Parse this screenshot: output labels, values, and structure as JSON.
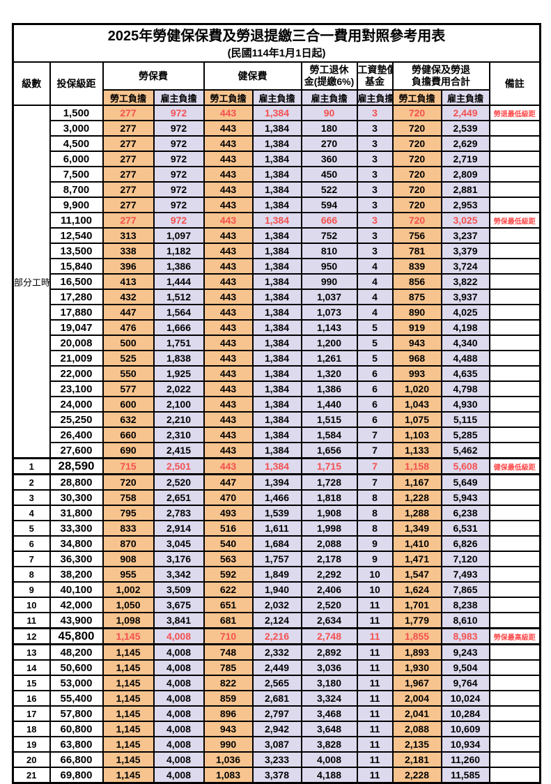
{
  "title": "2025年勞健保保費及勞退提繳三合一費用對照參考用表",
  "subtitle": "(民國114年1月1日起)",
  "colors": {
    "employee_share_bg": "#F7C48F",
    "employer_share_bg": "#DDDAEE",
    "highlight_value_red": "#F4504F",
    "remark_red": "#FF4B4B",
    "grid": "#000000"
  },
  "header": {
    "level": "級數",
    "bracket": "投保級距",
    "labor_ins": "勞保費",
    "health_ins": "健保費",
    "pension_line1": "勞工退休",
    "pension_line2": "金(提繳6%)",
    "wage_fund_line1": "工資墊償",
    "wage_fund_line2": "基金",
    "total_line1": "勞健保及勞退",
    "total_line2": "負擔費用合計",
    "remark": "備註",
    "employee_share": "勞工負擔",
    "employer_share": "雇主負擔"
  },
  "part_time": {
    "label": "部分工時",
    "row_count": 23
  },
  "rows": [
    {
      "level": "",
      "bracket": "1,500",
      "v": [
        "277",
        "972",
        "443",
        "1,384",
        "90",
        "3",
        "720",
        "2,449"
      ],
      "remark": "勞退最低級距",
      "hl": true,
      "big": false
    },
    {
      "level": "",
      "bracket": "3,000",
      "v": [
        "277",
        "972",
        "443",
        "1,384",
        "180",
        "3",
        "720",
        "2,539"
      ],
      "remark": "",
      "hl": false,
      "big": false
    },
    {
      "level": "",
      "bracket": "4,500",
      "v": [
        "277",
        "972",
        "443",
        "1,384",
        "270",
        "3",
        "720",
        "2,629"
      ],
      "remark": "",
      "hl": false,
      "big": false
    },
    {
      "level": "",
      "bracket": "6,000",
      "v": [
        "277",
        "972",
        "443",
        "1,384",
        "360",
        "3",
        "720",
        "2,719"
      ],
      "remark": "",
      "hl": false,
      "big": false
    },
    {
      "level": "",
      "bracket": "7,500",
      "v": [
        "277",
        "972",
        "443",
        "1,384",
        "450",
        "3",
        "720",
        "2,809"
      ],
      "remark": "",
      "hl": false,
      "big": false
    },
    {
      "level": "",
      "bracket": "8,700",
      "v": [
        "277",
        "972",
        "443",
        "1,384",
        "522",
        "3",
        "720",
        "2,881"
      ],
      "remark": "",
      "hl": false,
      "big": false
    },
    {
      "level": "",
      "bracket": "9,900",
      "v": [
        "277",
        "972",
        "443",
        "1,384",
        "594",
        "3",
        "720",
        "2,953"
      ],
      "remark": "",
      "hl": false,
      "big": false
    },
    {
      "level": "",
      "bracket": "11,100",
      "v": [
        "277",
        "972",
        "443",
        "1,384",
        "666",
        "3",
        "720",
        "3,025"
      ],
      "remark": "勞保最低級距",
      "hl": true,
      "big": false
    },
    {
      "level": "",
      "bracket": "12,540",
      "v": [
        "313",
        "1,097",
        "443",
        "1,384",
        "752",
        "3",
        "756",
        "3,237"
      ],
      "remark": "",
      "hl": false,
      "big": false
    },
    {
      "level": "",
      "bracket": "13,500",
      "v": [
        "338",
        "1,182",
        "443",
        "1,384",
        "810",
        "3",
        "781",
        "3,379"
      ],
      "remark": "",
      "hl": false,
      "big": false
    },
    {
      "level": "",
      "bracket": "15,840",
      "v": [
        "396",
        "1,386",
        "443",
        "1,384",
        "950",
        "4",
        "839",
        "3,724"
      ],
      "remark": "",
      "hl": false,
      "big": false
    },
    {
      "level": "",
      "bracket": "16,500",
      "v": [
        "413",
        "1,444",
        "443",
        "1,384",
        "990",
        "4",
        "856",
        "3,822"
      ],
      "remark": "",
      "hl": false,
      "big": false
    },
    {
      "level": "",
      "bracket": "17,280",
      "v": [
        "432",
        "1,512",
        "443",
        "1,384",
        "1,037",
        "4",
        "875",
        "3,937"
      ],
      "remark": "",
      "hl": false,
      "big": false
    },
    {
      "level": "",
      "bracket": "17,880",
      "v": [
        "447",
        "1,564",
        "443",
        "1,384",
        "1,073",
        "4",
        "890",
        "4,025"
      ],
      "remark": "",
      "hl": false,
      "big": false
    },
    {
      "level": "",
      "bracket": "19,047",
      "v": [
        "476",
        "1,666",
        "443",
        "1,384",
        "1,143",
        "5",
        "919",
        "4,198"
      ],
      "remark": "",
      "hl": false,
      "big": false
    },
    {
      "level": "",
      "bracket": "20,008",
      "v": [
        "500",
        "1,751",
        "443",
        "1,384",
        "1,200",
        "5",
        "943",
        "4,340"
      ],
      "remark": "",
      "hl": false,
      "big": false
    },
    {
      "level": "",
      "bracket": "21,009",
      "v": [
        "525",
        "1,838",
        "443",
        "1,384",
        "1,261",
        "5",
        "968",
        "4,488"
      ],
      "remark": "",
      "hl": false,
      "big": false
    },
    {
      "level": "",
      "bracket": "22,000",
      "v": [
        "550",
        "1,925",
        "443",
        "1,384",
        "1,320",
        "6",
        "993",
        "4,635"
      ],
      "remark": "",
      "hl": false,
      "big": false
    },
    {
      "level": "",
      "bracket": "23,100",
      "v": [
        "577",
        "2,022",
        "443",
        "1,384",
        "1,386",
        "6",
        "1,020",
        "4,798"
      ],
      "remark": "",
      "hl": false,
      "big": false
    },
    {
      "level": "",
      "bracket": "24,000",
      "v": [
        "600",
        "2,100",
        "443",
        "1,384",
        "1,440",
        "6",
        "1,043",
        "4,930"
      ],
      "remark": "",
      "hl": false,
      "big": false
    },
    {
      "level": "",
      "bracket": "25,250",
      "v": [
        "632",
        "2,210",
        "443",
        "1,384",
        "1,515",
        "6",
        "1,075",
        "5,115"
      ],
      "remark": "",
      "hl": false,
      "big": false
    },
    {
      "level": "",
      "bracket": "26,400",
      "v": [
        "660",
        "2,310",
        "443",
        "1,384",
        "1,584",
        "7",
        "1,103",
        "5,285"
      ],
      "remark": "",
      "hl": false,
      "big": false
    },
    {
      "level": "",
      "bracket": "27,600",
      "v": [
        "690",
        "2,415",
        "443",
        "1,384",
        "1,656",
        "7",
        "1,133",
        "5,462"
      ],
      "remark": "",
      "hl": false,
      "big": false
    },
    {
      "level": "1",
      "bracket": "28,590",
      "v": [
        "715",
        "2,501",
        "443",
        "1,384",
        "1,715",
        "7",
        "1,158",
        "5,608"
      ],
      "remark": "健保最低級距",
      "hl": true,
      "big": true
    },
    {
      "level": "2",
      "bracket": "28,800",
      "v": [
        "720",
        "2,520",
        "447",
        "1,394",
        "1,728",
        "7",
        "1,167",
        "5,649"
      ],
      "remark": "",
      "hl": false,
      "big": false
    },
    {
      "level": "3",
      "bracket": "30,300",
      "v": [
        "758",
        "2,651",
        "470",
        "1,466",
        "1,818",
        "8",
        "1,228",
        "5,943"
      ],
      "remark": "",
      "hl": false,
      "big": false
    },
    {
      "level": "4",
      "bracket": "31,800",
      "v": [
        "795",
        "2,783",
        "493",
        "1,539",
        "1,908",
        "8",
        "1,288",
        "6,238"
      ],
      "remark": "",
      "hl": false,
      "big": false
    },
    {
      "level": "5",
      "bracket": "33,300",
      "v": [
        "833",
        "2,914",
        "516",
        "1,611",
        "1,998",
        "8",
        "1,349",
        "6,531"
      ],
      "remark": "",
      "hl": false,
      "big": false
    },
    {
      "level": "6",
      "bracket": "34,800",
      "v": [
        "870",
        "3,045",
        "540",
        "1,684",
        "2,088",
        "9",
        "1,410",
        "6,826"
      ],
      "remark": "",
      "hl": false,
      "big": false
    },
    {
      "level": "7",
      "bracket": "36,300",
      "v": [
        "908",
        "3,176",
        "563",
        "1,757",
        "2,178",
        "9",
        "1,471",
        "7,120"
      ],
      "remark": "",
      "hl": false,
      "big": false
    },
    {
      "level": "8",
      "bracket": "38,200",
      "v": [
        "955",
        "3,342",
        "592",
        "1,849",
        "2,292",
        "10",
        "1,547",
        "7,493"
      ],
      "remark": "",
      "hl": false,
      "big": false
    },
    {
      "level": "9",
      "bracket": "40,100",
      "v": [
        "1,002",
        "3,509",
        "622",
        "1,940",
        "2,406",
        "10",
        "1,624",
        "7,865"
      ],
      "remark": "",
      "hl": false,
      "big": false
    },
    {
      "level": "10",
      "bracket": "42,000",
      "v": [
        "1,050",
        "3,675",
        "651",
        "2,032",
        "2,520",
        "11",
        "1,701",
        "8,238"
      ],
      "remark": "",
      "hl": false,
      "big": false
    },
    {
      "level": "11",
      "bracket": "43,900",
      "v": [
        "1,098",
        "3,841",
        "681",
        "2,124",
        "2,634",
        "11",
        "1,779",
        "8,610"
      ],
      "remark": "",
      "hl": false,
      "big": false
    },
    {
      "level": "12",
      "bracket": "45,800",
      "v": [
        "1,145",
        "4,008",
        "710",
        "2,216",
        "2,748",
        "11",
        "1,855",
        "8,983"
      ],
      "remark": "勞保最高級距",
      "hl": true,
      "big": true
    },
    {
      "level": "13",
      "bracket": "48,200",
      "v": [
        "1,145",
        "4,008",
        "748",
        "2,332",
        "2,892",
        "11",
        "1,893",
        "9,243"
      ],
      "remark": "",
      "hl": false,
      "big": false
    },
    {
      "level": "14",
      "bracket": "50,600",
      "v": [
        "1,145",
        "4,008",
        "785",
        "2,449",
        "3,036",
        "11",
        "1,930",
        "9,504"
      ],
      "remark": "",
      "hl": false,
      "big": false
    },
    {
      "level": "15",
      "bracket": "53,000",
      "v": [
        "1,145",
        "4,008",
        "822",
        "2,565",
        "3,180",
        "11",
        "1,967",
        "9,764"
      ],
      "remark": "",
      "hl": false,
      "big": false
    },
    {
      "level": "16",
      "bracket": "55,400",
      "v": [
        "1,145",
        "4,008",
        "859",
        "2,681",
        "3,324",
        "11",
        "2,004",
        "10,024"
      ],
      "remark": "",
      "hl": false,
      "big": false
    },
    {
      "level": "17",
      "bracket": "57,800",
      "v": [
        "1,145",
        "4,008",
        "896",
        "2,797",
        "3,468",
        "11",
        "2,041",
        "10,284"
      ],
      "remark": "",
      "hl": false,
      "big": false
    },
    {
      "level": "18",
      "bracket": "60,800",
      "v": [
        "1,145",
        "4,008",
        "943",
        "2,942",
        "3,648",
        "11",
        "2,088",
        "10,609"
      ],
      "remark": "",
      "hl": false,
      "big": false
    },
    {
      "level": "19",
      "bracket": "63,800",
      "v": [
        "1,145",
        "4,008",
        "990",
        "3,087",
        "3,828",
        "11",
        "2,135",
        "10,934"
      ],
      "remark": "",
      "hl": false,
      "big": false
    },
    {
      "level": "20",
      "bracket": "66,800",
      "v": [
        "1,145",
        "4,008",
        "1,036",
        "3,233",
        "4,008",
        "11",
        "2,181",
        "11,260"
      ],
      "remark": "",
      "hl": false,
      "big": false
    },
    {
      "level": "21",
      "bracket": "69,800",
      "v": [
        "1,145",
        "4,008",
        "1,083",
        "3,378",
        "4,188",
        "11",
        "2,228",
        "11,585"
      ],
      "remark": "",
      "hl": false,
      "big": false
    }
  ]
}
